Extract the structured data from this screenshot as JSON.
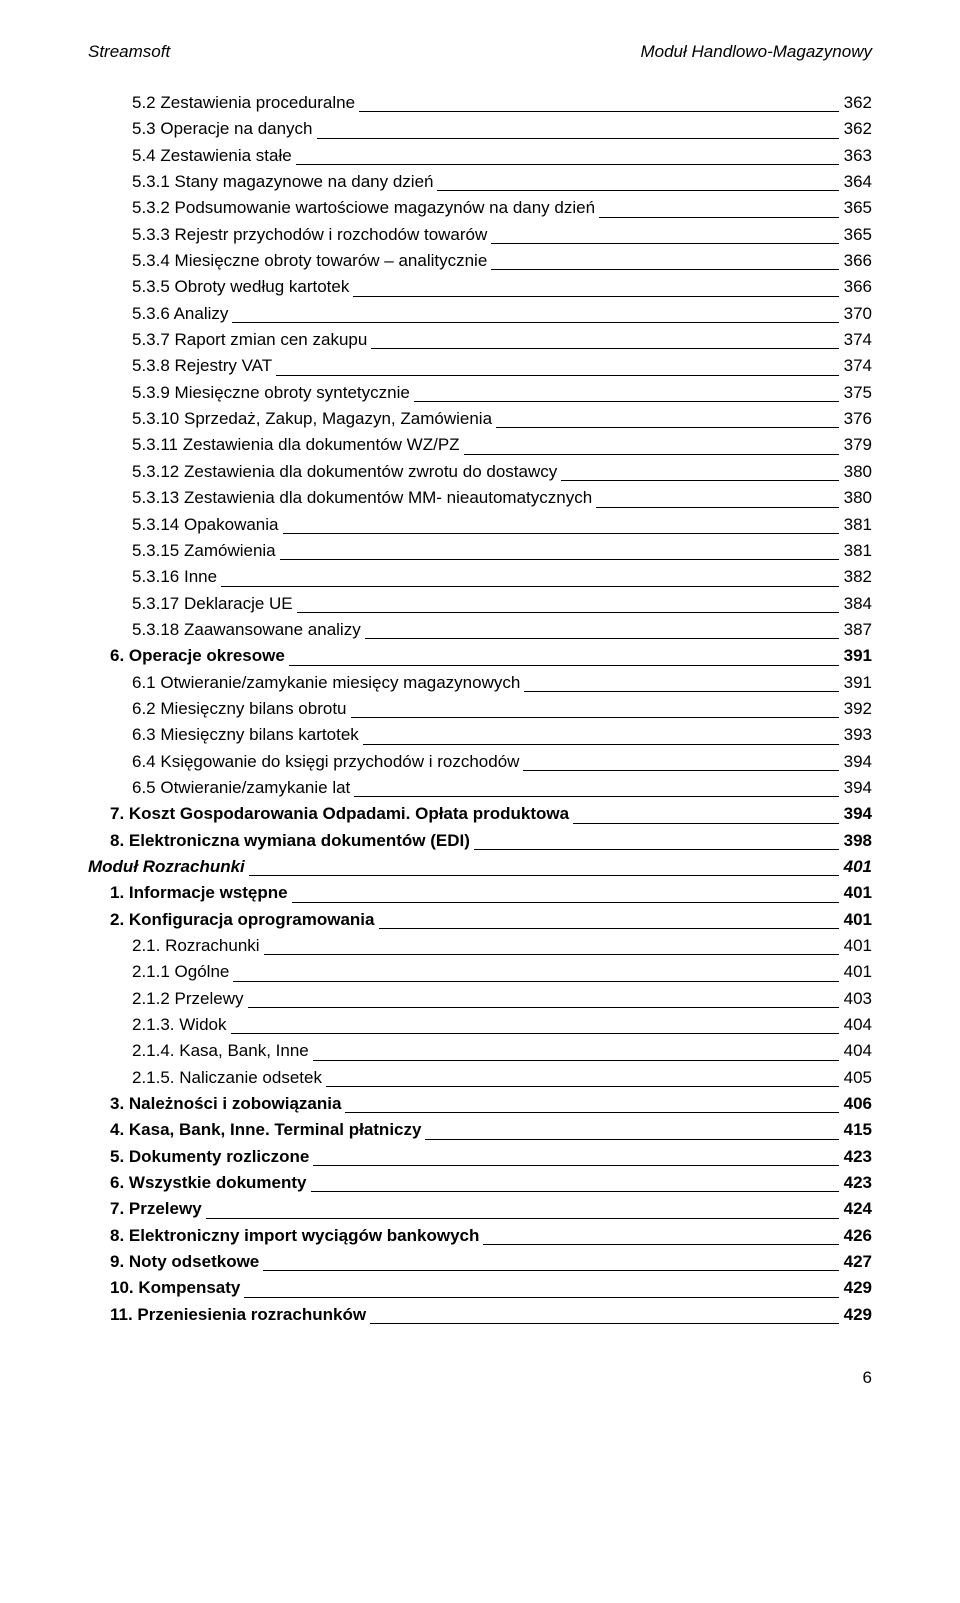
{
  "header": {
    "left": "Streamsoft",
    "right": "Moduł Handlowo-Magazynowy"
  },
  "toc": [
    {
      "indent": 2,
      "style": "",
      "label": "5.2 Zestawienia proceduralne",
      "page": "362"
    },
    {
      "indent": 2,
      "style": "",
      "label": "5.3 Operacje na danych",
      "page": "362"
    },
    {
      "indent": 2,
      "style": "",
      "label": "5.4 Zestawienia stałe",
      "page": "363"
    },
    {
      "indent": 2,
      "style": "",
      "label": "5.3.1 Stany magazynowe na dany dzień",
      "page": "364"
    },
    {
      "indent": 2,
      "style": "",
      "label": "5.3.2 Podsumowanie wartościowe magazynów na dany dzień",
      "page": "365"
    },
    {
      "indent": 2,
      "style": "",
      "label": "5.3.3 Rejestr przychodów i rozchodów towarów",
      "page": "365"
    },
    {
      "indent": 2,
      "style": "",
      "label": "5.3.4 Miesięczne obroty towarów – analitycznie",
      "page": "366"
    },
    {
      "indent": 2,
      "style": "",
      "label": "5.3.5 Obroty według kartotek",
      "page": "366"
    },
    {
      "indent": 2,
      "style": "",
      "label": "5.3.6 Analizy",
      "page": "370"
    },
    {
      "indent": 2,
      "style": "",
      "label": "5.3.7 Raport zmian cen zakupu",
      "page": "374"
    },
    {
      "indent": 2,
      "style": "",
      "label": "5.3.8 Rejestry VAT",
      "page": "374"
    },
    {
      "indent": 2,
      "style": "",
      "label": "5.3.9 Miesięczne obroty syntetycznie",
      "page": "375"
    },
    {
      "indent": 2,
      "style": "",
      "label": "5.3.10 Sprzedaż, Zakup, Magazyn, Zamówienia",
      "page": "376"
    },
    {
      "indent": 2,
      "style": "",
      "label": "5.3.11 Zestawienia dla dokumentów WZ/PZ",
      "page": "379"
    },
    {
      "indent": 2,
      "style": "",
      "label": "5.3.12 Zestawienia dla dokumentów zwrotu do dostawcy",
      "page": "380"
    },
    {
      "indent": 2,
      "style": "",
      "label": "5.3.13 Zestawienia dla dokumentów MM- nieautomatycznych",
      "page": "380"
    },
    {
      "indent": 2,
      "style": "",
      "label": "5.3.14 Opakowania",
      "page": "381"
    },
    {
      "indent": 2,
      "style": "",
      "label": "5.3.15 Zamówienia",
      "page": "381"
    },
    {
      "indent": 2,
      "style": "",
      "label": "5.3.16 Inne",
      "page": "382"
    },
    {
      "indent": 2,
      "style": "",
      "label": "5.3.17 Deklaracje UE",
      "page": "384"
    },
    {
      "indent": 2,
      "style": "",
      "label": "5.3.18 Zaawansowane analizy",
      "page": "387"
    },
    {
      "indent": 1,
      "style": "bold",
      "label": "6. Operacje okresowe",
      "page": "391"
    },
    {
      "indent": 2,
      "style": "",
      "label": "6.1 Otwieranie/zamykanie miesięcy magazynowych",
      "page": "391"
    },
    {
      "indent": 2,
      "style": "",
      "label": "6.2 Miesięczny bilans obrotu",
      "page": "392"
    },
    {
      "indent": 2,
      "style": "",
      "label": "6.3 Miesięczny bilans kartotek",
      "page": "393"
    },
    {
      "indent": 2,
      "style": "",
      "label": "6.4 Księgowanie do księgi przychodów i rozchodów",
      "page": "394"
    },
    {
      "indent": 2,
      "style": "",
      "label": "6.5 Otwieranie/zamykanie lat",
      "page": "394"
    },
    {
      "indent": 1,
      "style": "bold",
      "label": "7. Koszt Gospodarowania Odpadami. Opłata produktowa",
      "page": "394"
    },
    {
      "indent": 1,
      "style": "bold",
      "label": "8. Elektroniczna wymiana dokumentów (EDI)",
      "page": "398"
    },
    {
      "indent": 0,
      "style": "bolditalic",
      "label": "Moduł Rozrachunki",
      "page": "401"
    },
    {
      "indent": 1,
      "style": "bold",
      "label": "1. Informacje wstępne",
      "page": "401"
    },
    {
      "indent": 1,
      "style": "bold",
      "label": "2. Konfiguracja oprogramowania",
      "page": "401"
    },
    {
      "indent": 2,
      "style": "",
      "label": "2.1. Rozrachunki",
      "page": "401"
    },
    {
      "indent": 2,
      "style": "",
      "label": "2.1.1 Ogólne",
      "page": "401"
    },
    {
      "indent": 2,
      "style": "",
      "label": "2.1.2 Przelewy",
      "page": "403"
    },
    {
      "indent": 2,
      "style": "",
      "label": "2.1.3. Widok",
      "page": "404"
    },
    {
      "indent": 2,
      "style": "",
      "label": "2.1.4. Kasa, Bank, Inne",
      "page": "404"
    },
    {
      "indent": 2,
      "style": "",
      "label": "2.1.5. Naliczanie odsetek",
      "page": "405"
    },
    {
      "indent": 1,
      "style": "bold",
      "label": "3. Należności i zobowiązania",
      "page": "406"
    },
    {
      "indent": 1,
      "style": "bold",
      "label": "4. Kasa, Bank, Inne. Terminal płatniczy",
      "page": "415"
    },
    {
      "indent": 1,
      "style": "bold",
      "label": "5. Dokumenty rozliczone",
      "page": "423"
    },
    {
      "indent": 1,
      "style": "bold",
      "label": "6. Wszystkie dokumenty",
      "page": "423"
    },
    {
      "indent": 1,
      "style": "bold",
      "label": "7. Przelewy",
      "page": "424"
    },
    {
      "indent": 1,
      "style": "bold",
      "label": "8. Elektroniczny import wyciągów bankowych",
      "page": "426"
    },
    {
      "indent": 1,
      "style": "bold",
      "label": "9. Noty odsetkowe",
      "page": "427"
    },
    {
      "indent": 1,
      "style": "bold",
      "label": "10. Kompensaty",
      "page": "429"
    },
    {
      "indent": 1,
      "style": "bold",
      "label": "11. Przeniesienia rozrachunków",
      "page": "429"
    }
  ],
  "footer": {
    "page_number": "6"
  }
}
